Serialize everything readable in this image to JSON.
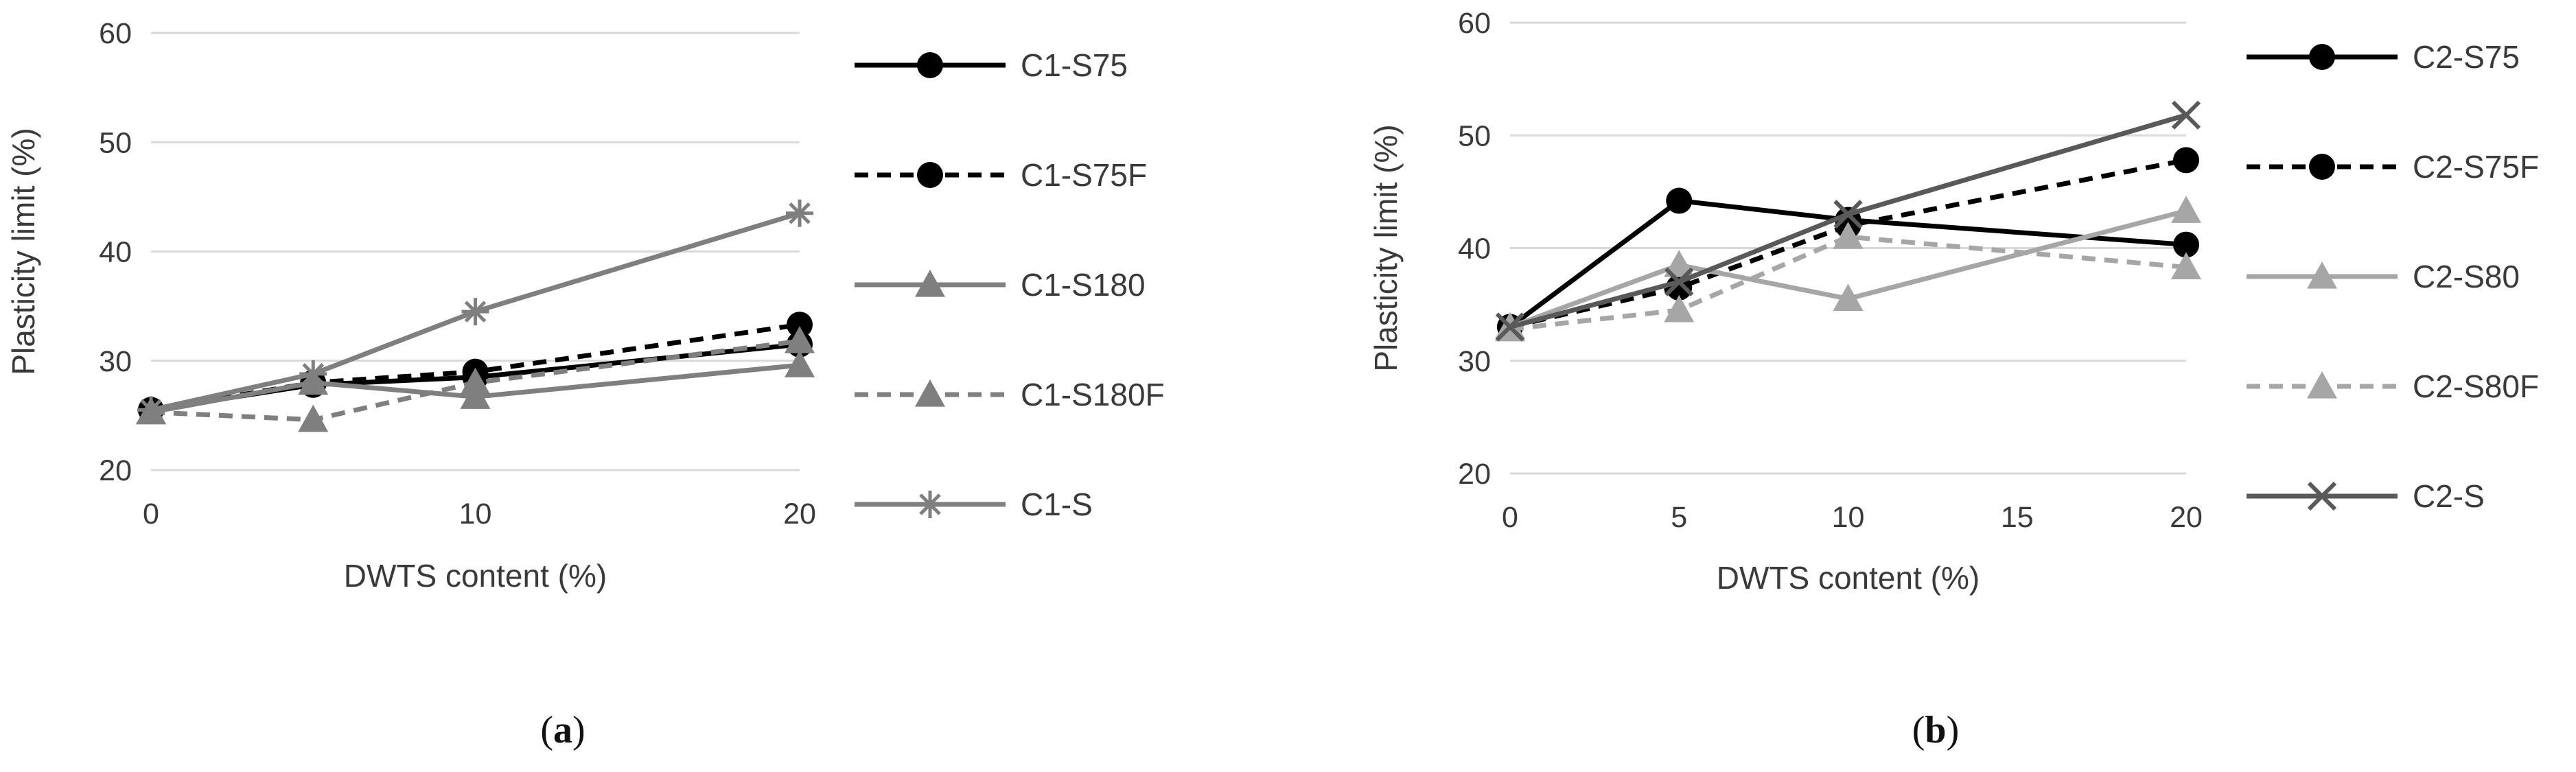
{
  "chart_data": [
    {
      "type": "line",
      "panel_label": "a",
      "xlabel": "DWTS content (%)",
      "ylabel": "Plasticity limit (%)",
      "xlim": [
        0,
        20
      ],
      "ylim": [
        20,
        60
      ],
      "xticks": [
        0,
        10,
        20
      ],
      "yticks": [
        20,
        30,
        40,
        50,
        60
      ],
      "grid": "horizontal",
      "legend_position": "right",
      "series": [
        {
          "name": "C1-S75",
          "x": [
            0,
            5,
            10,
            20
          ],
          "y": [
            25.5,
            27.8,
            28.5,
            31.5
          ],
          "color": "#000000",
          "dash": "solid",
          "marker": "circle"
        },
        {
          "name": "C1-S75F",
          "x": [
            0,
            5,
            10,
            20
          ],
          "y": [
            25.5,
            28.0,
            29.0,
            33.3
          ],
          "color": "#000000",
          "dash": "dashed",
          "marker": "circle"
        },
        {
          "name": "C1-S180",
          "x": [
            0,
            5,
            10,
            20
          ],
          "y": [
            25.3,
            28.0,
            26.7,
            29.6
          ],
          "color": "#7f7f7f",
          "dash": "solid",
          "marker": "triangle"
        },
        {
          "name": "C1-S180F",
          "x": [
            0,
            5,
            10,
            20
          ],
          "y": [
            25.3,
            24.6,
            28.0,
            31.8
          ],
          "color": "#7f7f7f",
          "dash": "dashed",
          "marker": "triangle"
        },
        {
          "name": "C1-S",
          "x": [
            0,
            5,
            10,
            20
          ],
          "y": [
            25.5,
            28.8,
            34.5,
            43.5
          ],
          "color": "#7f7f7f",
          "dash": "solid",
          "marker": "asterisk"
        }
      ]
    },
    {
      "type": "line",
      "panel_label": "b",
      "xlabel": "DWTS content (%)",
      "ylabel": "Plasticity limit (%)",
      "xlim": [
        0,
        20
      ],
      "ylim": [
        20,
        60
      ],
      "xticks": [
        0,
        5,
        10,
        15,
        20
      ],
      "yticks": [
        20,
        30,
        40,
        50,
        60
      ],
      "grid": "horizontal",
      "legend_position": "right",
      "series": [
        {
          "name": "C2-S75",
          "x": [
            0,
            5,
            10,
            20
          ],
          "y": [
            33.0,
            44.2,
            42.5,
            40.3
          ],
          "color": "#000000",
          "dash": "solid",
          "marker": "circle"
        },
        {
          "name": "C2-S75F",
          "x": [
            0,
            5,
            10,
            20
          ],
          "y": [
            33.0,
            36.5,
            42.0,
            47.8
          ],
          "color": "#000000",
          "dash": "dashed",
          "marker": "circle"
        },
        {
          "name": "C2-S80",
          "x": [
            0,
            5,
            10,
            20
          ],
          "y": [
            33.0,
            38.5,
            35.5,
            43.3
          ],
          "color": "#a6a6a6",
          "dash": "solid",
          "marker": "triangle"
        },
        {
          "name": "C2-S80F",
          "x": [
            0,
            5,
            10,
            20
          ],
          "y": [
            32.8,
            34.5,
            41.0,
            38.3
          ],
          "color": "#a6a6a6",
          "dash": "dashed",
          "marker": "triangle"
        },
        {
          "name": "C2-S",
          "x": [
            0,
            5,
            10,
            20
          ],
          "y": [
            33.0,
            37.0,
            43.0,
            51.8
          ],
          "color": "#595959",
          "dash": "solid",
          "marker": "cross"
        }
      ]
    }
  ]
}
